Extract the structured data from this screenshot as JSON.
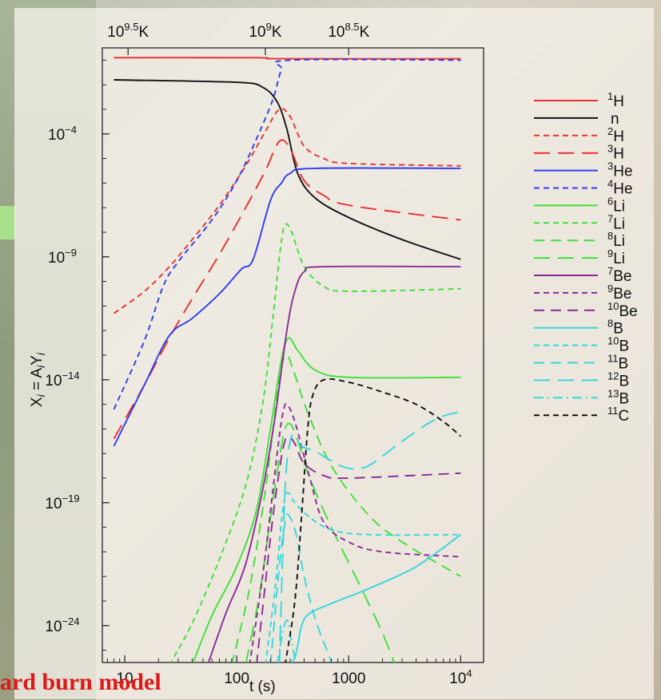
{
  "footer": {
    "title": "ard burn model"
  },
  "chart_data": {
    "type": "line",
    "xlabel": "t (s)",
    "ylabel": "X_i = A_i Y_i",
    "x_scale": "log",
    "y_scale": "log",
    "xlim": [
      6.3,
      16000
    ],
    "ylim_exp": [
      -25.5,
      -0.5
    ],
    "x_ticks": [
      {
        "value": 10,
        "label": "10"
      },
      {
        "value": 100,
        "label": "100"
      },
      {
        "value": 1000,
        "label": "1000"
      },
      {
        "value": 10000,
        "label": "10",
        "sup": "4"
      }
    ],
    "y_ticks": [
      {
        "exp": -4,
        "label": "10",
        "sup": "−4"
      },
      {
        "exp": -9,
        "label": "10",
        "sup": "−9"
      },
      {
        "exp": -14,
        "label": "10",
        "sup": "−14"
      },
      {
        "exp": -19,
        "label": "10",
        "sup": "−19"
      },
      {
        "exp": -24,
        "label": "10",
        "sup": "−24"
      }
    ],
    "top_axis_ticks": [
      {
        "t": 10.7,
        "label": "10",
        "sup": "9.5",
        "unit": "K"
      },
      {
        "t": 180,
        "label": "10",
        "sup": "9",
        "unit": "K"
      },
      {
        "t": 1000,
        "label": "10",
        "sup": "8.5",
        "unit": "K"
      }
    ],
    "colors": {
      "H": "#e8312c",
      "n": "#111111",
      "He": "#2e3df0",
      "Li": "#3fe03a",
      "Be": "#8a2a96",
      "B": "#35d6dd",
      "C": "#111111"
    },
    "series": [
      {
        "name": "H",
        "mass": "1",
        "color": "#e8312c",
        "dash": "solid",
        "points": [
          [
            8,
            -0.9
          ],
          [
            150,
            -0.9
          ],
          [
            250,
            -0.94
          ],
          [
            10000,
            -0.94
          ]
        ]
      },
      {
        "name": "n",
        "mass": "",
        "color": "#111111",
        "dash": "solid",
        "points": [
          [
            8,
            -1.8
          ],
          [
            100,
            -1.9
          ],
          [
            170,
            -2.1
          ],
          [
            230,
            -2.7
          ],
          [
            280,
            -3.8
          ],
          [
            350,
            -5.6
          ],
          [
            500,
            -6.6
          ],
          [
            1000,
            -7.4
          ],
          [
            3000,
            -8.3
          ],
          [
            10000,
            -9.1
          ]
        ]
      },
      {
        "name": "H",
        "mass": "2",
        "color": "#e8312c",
        "dash": "short",
        "points": [
          [
            8,
            -11.3
          ],
          [
            15,
            -10.4
          ],
          [
            25,
            -9.4
          ],
          [
            40,
            -8.3
          ],
          [
            70,
            -6.9
          ],
          [
            120,
            -5.3
          ],
          [
            180,
            -3.9
          ],
          [
            240,
            -3.0
          ],
          [
            300,
            -3.3
          ],
          [
            400,
            -4.5
          ],
          [
            600,
            -5.0
          ],
          [
            1000,
            -5.2
          ],
          [
            10000,
            -5.3
          ]
        ]
      },
      {
        "name": "H",
        "mass": "3",
        "color": "#e8312c",
        "dash": "long",
        "points": [
          [
            8,
            -16.4
          ],
          [
            15,
            -14.2
          ],
          [
            25,
            -12.3
          ],
          [
            40,
            -10.7
          ],
          [
            70,
            -8.9
          ],
          [
            120,
            -7.0
          ],
          [
            180,
            -5.5
          ],
          [
            240,
            -4.3
          ],
          [
            300,
            -4.6
          ],
          [
            400,
            -5.9
          ],
          [
            600,
            -6.5
          ],
          [
            1000,
            -6.9
          ],
          [
            10000,
            -7.5
          ]
        ]
      },
      {
        "name": "He",
        "mass": "3",
        "color": "#2e3df0",
        "dash": "solid",
        "points": [
          [
            8,
            -16.7
          ],
          [
            15,
            -14.2
          ],
          [
            25,
            -12.2
          ],
          [
            40,
            -11.5
          ],
          [
            70,
            -10.5
          ],
          [
            110,
            -9.5
          ],
          [
            140,
            -9.1
          ],
          [
            200,
            -6.7
          ],
          [
            250,
            -6.0
          ],
          [
            300,
            -5.6
          ],
          [
            500,
            -5.4
          ],
          [
            10000,
            -5.4
          ]
        ]
      },
      {
        "name": "He",
        "mass": "4",
        "color": "#2e3df0",
        "dash": "short",
        "points": [
          [
            8,
            -15.2
          ],
          [
            15,
            -12.4
          ],
          [
            22,
            -10.2
          ],
          [
            30,
            -9.2
          ],
          [
            60,
            -7.5
          ],
          [
            100,
            -5.9
          ],
          [
            150,
            -4.2
          ],
          [
            210,
            -2.6
          ],
          [
            250,
            -1.4
          ],
          [
            300,
            -1.0
          ],
          [
            10000,
            -1.0
          ]
        ]
      },
      {
        "name": "Li",
        "mass": "6",
        "color": "#3fe03a",
        "dash": "solid",
        "points": [
          [
            40,
            -25.6
          ],
          [
            60,
            -23.6
          ],
          [
            100,
            -21.6
          ],
          [
            150,
            -19.3
          ],
          [
            200,
            -16.0
          ],
          [
            250,
            -13.2
          ],
          [
            290,
            -12.3
          ],
          [
            350,
            -12.8
          ],
          [
            500,
            -13.6
          ],
          [
            1000,
            -13.9
          ],
          [
            10000,
            -13.9
          ]
        ]
      },
      {
        "name": "Li",
        "mass": "7",
        "color": "#3fe03a",
        "dash": "short",
        "points": [
          [
            25,
            -25.6
          ],
          [
            40,
            -23.9
          ],
          [
            70,
            -21.3
          ],
          [
            120,
            -18.3
          ],
          [
            170,
            -15.0
          ],
          [
            210,
            -11.5
          ],
          [
            245,
            -8.7
          ],
          [
            270,
            -7.7
          ],
          [
            310,
            -8.0
          ],
          [
            400,
            -9.4
          ],
          [
            600,
            -10.2
          ],
          [
            1000,
            -10.4
          ],
          [
            10000,
            -10.3
          ]
        ]
      },
      {
        "name": "Li",
        "mass": "8",
        "color": "#3fe03a",
        "dash": "dash",
        "points": [
          [
            90,
            -25.6
          ],
          [
            130,
            -22.5
          ],
          [
            180,
            -18.5
          ],
          [
            220,
            -15.3
          ],
          [
            250,
            -13.5
          ],
          [
            280,
            -13.0
          ],
          [
            320,
            -13.6
          ],
          [
            420,
            -15.2
          ],
          [
            700,
            -17.5
          ],
          [
            1500,
            -19.5
          ],
          [
            3000,
            -20.6
          ],
          [
            10000,
            -22.0
          ]
        ]
      },
      {
        "name": "Li",
        "mass": "9",
        "color": "#3fe03a",
        "dash": "long",
        "points": [
          [
            120,
            -25.6
          ],
          [
            160,
            -22.7
          ],
          [
            200,
            -19.6
          ],
          [
            240,
            -17.2
          ],
          [
            270,
            -16.0
          ],
          [
            300,
            -15.8
          ],
          [
            340,
            -16.3
          ],
          [
            450,
            -18.0
          ],
          [
            700,
            -20.0
          ],
          [
            1300,
            -22.5
          ],
          [
            2000,
            -24.3
          ],
          [
            2600,
            -25.6
          ]
        ]
      },
      {
        "name": "Be",
        "mass": "7",
        "color": "#8a2a96",
        "dash": "solid",
        "points": [
          [
            55,
            -25.6
          ],
          [
            80,
            -23.5
          ],
          [
            120,
            -21.5
          ],
          [
            170,
            -18.5
          ],
          [
            220,
            -15.5
          ],
          [
            280,
            -12.0
          ],
          [
            330,
            -10.4
          ],
          [
            400,
            -9.6
          ],
          [
            600,
            -9.4
          ],
          [
            10000,
            -9.4
          ]
        ]
      },
      {
        "name": "Be",
        "mass": "9",
        "color": "#8a2a96",
        "dash": "short",
        "points": [
          [
            130,
            -25.6
          ],
          [
            170,
            -22.0
          ],
          [
            210,
            -18.5
          ],
          [
            240,
            -16.3
          ],
          [
            260,
            -15.3
          ],
          [
            280,
            -15.0
          ],
          [
            330,
            -15.7
          ],
          [
            450,
            -18.0
          ],
          [
            600,
            -19.8
          ],
          [
            1000,
            -20.6
          ],
          [
            2000,
            -21.0
          ],
          [
            10000,
            -21.2
          ]
        ]
      },
      {
        "name": "Be",
        "mass": "10",
        "color": "#8a2a96",
        "dash": "dash",
        "points": [
          [
            150,
            -25.6
          ],
          [
            180,
            -22.3
          ],
          [
            210,
            -19.6
          ],
          [
            240,
            -17.7
          ],
          [
            265,
            -16.6
          ],
          [
            290,
            -16.3
          ],
          [
            330,
            -16.6
          ],
          [
            400,
            -17.4
          ],
          [
            600,
            -17.9
          ],
          [
            1000,
            -18.0
          ],
          [
            10000,
            -17.8
          ]
        ]
      },
      {
        "name": "B",
        "mass": "8",
        "color": "#35d6dd",
        "dash": "solid",
        "points": [
          [
            270,
            -25.6
          ],
          [
            330,
            -25.3
          ],
          [
            380,
            -24.0
          ],
          [
            450,
            -23.5
          ],
          [
            700,
            -23.1
          ],
          [
            1500,
            -22.5
          ],
          [
            4000,
            -21.6
          ],
          [
            10000,
            -20.3
          ]
        ]
      },
      {
        "name": "B",
        "mass": "10",
        "color": "#35d6dd",
        "dash": "short",
        "points": [
          [
            180,
            -25.6
          ],
          [
            220,
            -22.5
          ],
          [
            250,
            -19.8
          ],
          [
            270,
            -18.8
          ],
          [
            290,
            -18.6
          ],
          [
            330,
            -19.0
          ],
          [
            450,
            -19.6
          ],
          [
            700,
            -20.1
          ],
          [
            1500,
            -20.3
          ],
          [
            10000,
            -20.3
          ]
        ]
      },
      {
        "name": "B",
        "mass": "11",
        "color": "#35d6dd",
        "dash": "dash",
        "points": [
          [
            200,
            -25.6
          ],
          [
            240,
            -21.6
          ],
          [
            270,
            -19.8
          ],
          [
            290,
            -19.5
          ],
          [
            340,
            -20.3
          ],
          [
            400,
            -22.0
          ],
          [
            500,
            -23.7
          ],
          [
            650,
            -25.1
          ],
          [
            720,
            -25.6
          ]
        ]
      },
      {
        "name": "B",
        "mass": "12",
        "color": "#35d6dd",
        "dash": "long",
        "points": [
          [
            240,
            -25.6
          ],
          [
            270,
            -18.5
          ],
          [
            300,
            -16.5
          ],
          [
            330,
            -16.3
          ],
          [
            380,
            -16.7
          ],
          [
            500,
            -16.9
          ],
          [
            700,
            -17.3
          ],
          [
            1000,
            -17.6
          ],
          [
            1500,
            -17.5
          ],
          [
            3000,
            -16.5
          ],
          [
            6000,
            -15.6
          ],
          [
            10000,
            -15.3
          ]
        ]
      },
      {
        "name": "B",
        "mass": "13",
        "color": "#35d6dd",
        "dash": "dashdot",
        "points": [
          [
            230,
            -25.6
          ],
          [
            260,
            -24.2
          ],
          [
            285,
            -23.8
          ],
          [
            310,
            -24.7
          ],
          [
            340,
            -25.6
          ]
        ]
      },
      {
        "name": "C",
        "mass": "11",
        "color": "#111111",
        "dash": "short",
        "points": [
          [
            270,
            -25.6
          ],
          [
            330,
            -23.0
          ],
          [
            380,
            -19.5
          ],
          [
            430,
            -16.0
          ],
          [
            480,
            -14.6
          ],
          [
            600,
            -14.0
          ],
          [
            1000,
            -14.1
          ],
          [
            2000,
            -14.5
          ],
          [
            4000,
            -15.0
          ],
          [
            7000,
            -15.7
          ],
          [
            10000,
            -16.3
          ]
        ]
      }
    ]
  }
}
